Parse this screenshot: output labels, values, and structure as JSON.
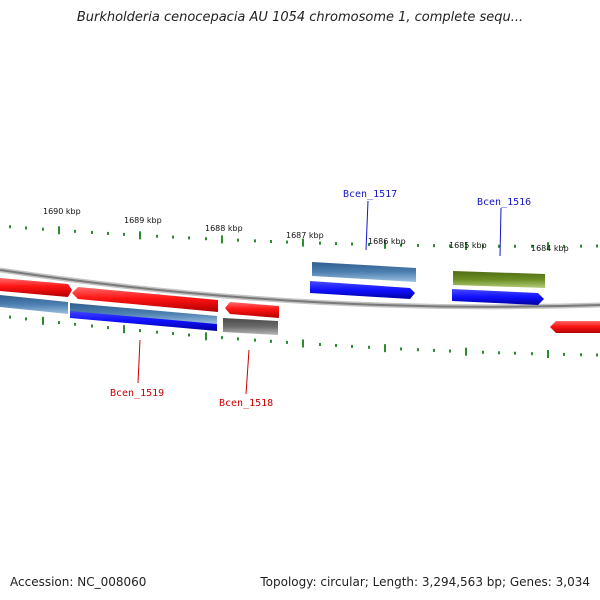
{
  "title": "Burkholderia cenocepacia AU 1054 chromosome 1, complete sequ...",
  "footer": {
    "accession": "Accession: NC_008060",
    "summary": "Topology: circular; Length: 3,294,563 bp; Genes: 3,034"
  },
  "colors": {
    "backbone": "#888888",
    "tick": "#2e8b2e",
    "gene_red": "#ff1a1a",
    "gene_blue": "#1414ff",
    "gene_steel": "#4d7fb0",
    "gene_gray": "#6a6a6a",
    "gene_olive": "#6b8e23",
    "label_blue": "#1414cc",
    "label_red": "#cc0000"
  },
  "scale_labels": [
    {
      "text": "1690 kbp",
      "kbp": 1690
    },
    {
      "text": "1689 kbp",
      "kbp": 1689
    },
    {
      "text": "1688 kbp",
      "kbp": 1688
    },
    {
      "text": "1687 kbp",
      "kbp": 1687
    },
    {
      "text": "1686 kbp",
      "kbp": 1686
    },
    {
      "text": "1685 kbp",
      "kbp": 1685
    },
    {
      "text": "1684 kbp",
      "kbp": 1684
    }
  ],
  "gene_labels": [
    {
      "text": "Bcen_1517",
      "color": "blue"
    },
    {
      "text": "Bcen_1516",
      "color": "blue"
    },
    {
      "text": "Bcen_1519",
      "color": "red"
    },
    {
      "text": "Bcen_1518",
      "color": "red"
    }
  ]
}
